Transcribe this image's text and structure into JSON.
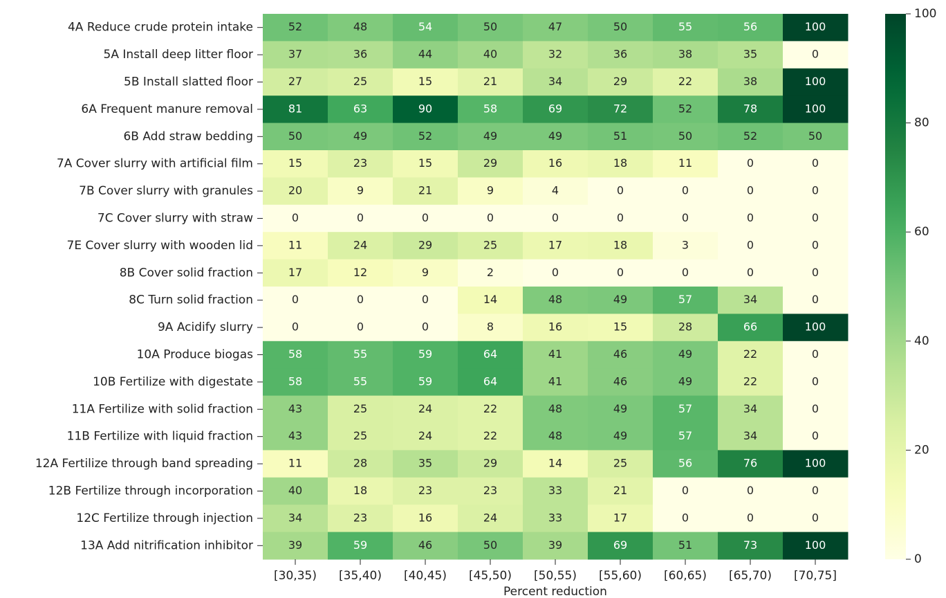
{
  "chart_data": {
    "type": "heatmap",
    "xlabel": "Percent reduction",
    "categories": [
      "[30,35)",
      "[35,40)",
      "[40,45)",
      "[45,50)",
      "[50,55)",
      "[55,60)",
      "[60,65)",
      "[65,70)",
      "[70,75]"
    ],
    "rows": [
      "4A Reduce crude protein intake",
      "5A Install deep litter floor",
      "5B Install slatted floor",
      "6A Frequent manure removal",
      "6B Add straw bedding",
      "7A Cover slurry with artificial film",
      "7B Cover slurry with granules",
      "7C Cover slurry with straw",
      "7E Cover slurry with wooden lid",
      "8B Cover solid fraction",
      "8C Turn solid fraction",
      "9A Acidify slurry",
      "10A Produce biogas",
      "10B Fertilize with digestate",
      "11A Fertilize with solid fraction",
      "11B Fertilize with liquid fraction",
      "12A Fertilize through band spreading",
      "12B Fertilize through incorporation",
      "12C Fertilize through injection",
      "13A Add nitrification inhibitor"
    ],
    "values": [
      [
        52,
        48,
        54,
        50,
        47,
        50,
        55,
        56,
        100
      ],
      [
        37,
        36,
        44,
        40,
        32,
        36,
        38,
        35,
        0
      ],
      [
        27,
        25,
        15,
        21,
        34,
        29,
        22,
        38,
        100
      ],
      [
        81,
        63,
        90,
        58,
        69,
        72,
        52,
        78,
        100
      ],
      [
        50,
        49,
        52,
        49,
        49,
        51,
        50,
        52,
        50
      ],
      [
        15,
        23,
        15,
        29,
        16,
        18,
        11,
        0,
        0
      ],
      [
        20,
        9,
        21,
        9,
        4,
        0,
        0,
        0,
        0
      ],
      [
        0,
        0,
        0,
        0,
        0,
        0,
        0,
        0,
        0
      ],
      [
        11,
        24,
        29,
        25,
        17,
        18,
        3,
        0,
        0
      ],
      [
        17,
        12,
        9,
        2,
        0,
        0,
        0,
        0,
        0
      ],
      [
        0,
        0,
        0,
        14,
        48,
        49,
        57,
        34,
        0
      ],
      [
        0,
        0,
        0,
        8,
        16,
        15,
        28,
        66,
        100
      ],
      [
        58,
        55,
        59,
        64,
        41,
        46,
        49,
        22,
        0
      ],
      [
        58,
        55,
        59,
        64,
        41,
        46,
        49,
        22,
        0
      ],
      [
        43,
        25,
        24,
        22,
        48,
        49,
        57,
        34,
        0
      ],
      [
        43,
        25,
        24,
        22,
        48,
        49,
        57,
        34,
        0
      ],
      [
        11,
        28,
        35,
        29,
        14,
        25,
        56,
        76,
        100
      ],
      [
        40,
        18,
        23,
        23,
        33,
        21,
        0,
        0,
        0
      ],
      [
        34,
        23,
        16,
        24,
        33,
        17,
        0,
        0,
        0
      ],
      [
        39,
        59,
        46,
        50,
        39,
        69,
        51,
        73,
        100
      ]
    ],
    "colormap": "YlGn",
    "clim": [
      0,
      100
    ],
    "cticks": [
      0,
      20,
      40,
      60,
      80,
      100
    ]
  }
}
